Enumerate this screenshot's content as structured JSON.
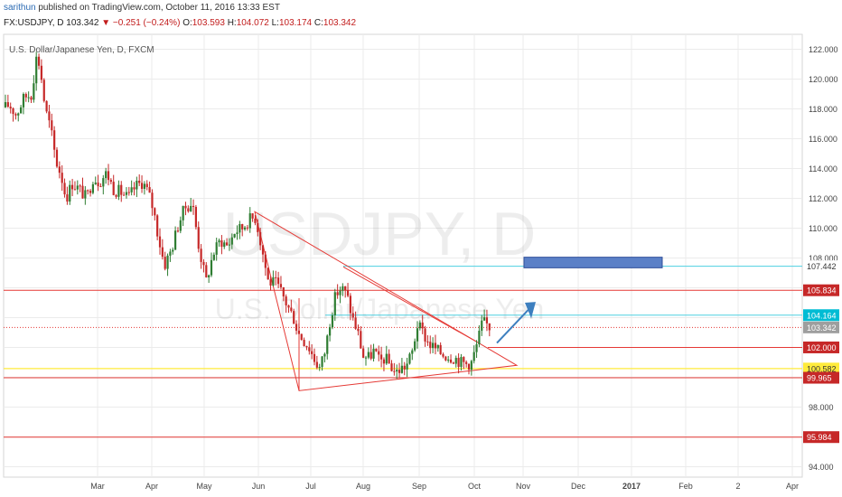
{
  "header": {
    "author": "sarithun",
    "published": "published on TradingView.com, October 11, 2016 13:33 EST",
    "symbol": "FX:USDJPY, D",
    "last": "103.342",
    "change": "−0.251 (−0.24%)",
    "o_label": "O:",
    "o": "103.593",
    "h_label": "H:",
    "h": "104.072",
    "l_label": "L:",
    "l": "103.174",
    "c_label": "C:",
    "c": "103.342"
  },
  "chart_data": {
    "type": "candlestick",
    "title": "U.S. Dollar/Japanese Yen, D, FXCM",
    "watermark_symbol": "USDJPY, D",
    "watermark_name": "U.S. Dollar/Japanese Yen",
    "x_ticks": [
      "Mar",
      "Apr",
      "May",
      "Jun",
      "Jul",
      "Aug",
      "Sep",
      "Oct",
      "Nov",
      "Dec",
      "2017",
      "Feb",
      "2",
      "Apr"
    ],
    "y_ticks": [
      "122.000",
      "120.000",
      "118.000",
      "116.000",
      "114.000",
      "112.000",
      "110.000",
      "108.000",
      "106.000",
      "104.000",
      "102.000",
      "100.000",
      "98.000",
      "96.000",
      "94.000"
    ],
    "ylim": [
      93.3,
      123.0
    ],
    "price_path": [
      [
        0,
        117.8
      ],
      [
        10,
        118.3
      ],
      [
        18,
        117.6
      ],
      [
        27,
        118.8
      ],
      [
        35,
        119.0
      ],
      [
        40,
        121.4
      ],
      [
        44,
        121.0
      ],
      [
        50,
        118.0
      ],
      [
        56,
        116.7
      ],
      [
        62,
        114.5
      ],
      [
        68,
        113.5
      ],
      [
        73,
        112.0
      ],
      [
        80,
        113.0
      ],
      [
        88,
        112.6
      ],
      [
        96,
        112.0
      ],
      [
        103,
        113.4
      ],
      [
        110,
        113.1
      ],
      [
        118,
        113.7
      ],
      [
        126,
        112.6
      ],
      [
        134,
        112.4
      ],
      [
        142,
        112.0
      ],
      [
        150,
        112.8
      ],
      [
        158,
        113.1
      ],
      [
        164,
        112.4
      ],
      [
        170,
        111.2
      ],
      [
        175,
        109.5
      ],
      [
        182,
        107.5
      ],
      [
        190,
        108.6
      ],
      [
        198,
        110.4
      ],
      [
        205,
        111.4
      ],
      [
        213,
        111.7
      ],
      [
        220,
        108.8
      ],
      [
        228,
        106.4
      ],
      [
        236,
        108.3
      ],
      [
        244,
        109.2
      ],
      [
        252,
        108.8
      ],
      [
        260,
        109.8
      ],
      [
        268,
        110.0
      ],
      [
        276,
        110.6
      ],
      [
        283,
        110.7
      ],
      [
        290,
        108.6
      ],
      [
        297,
        106.4
      ],
      [
        305,
        106.3
      ],
      [
        312,
        105.6
      ],
      [
        318,
        104.8
      ],
      [
        325,
        104.0
      ],
      [
        330,
        103.0
      ],
      [
        336,
        102.5
      ],
      [
        342,
        102.0
      ],
      [
        348,
        101.2
      ],
      [
        354,
        100.6
      ],
      [
        360,
        101.8
      ],
      [
        366,
        104.1
      ],
      [
        372,
        105.6
      ],
      [
        378,
        106.0
      ],
      [
        384,
        105.5
      ],
      [
        390,
        104.0
      ],
      [
        396,
        103.0
      ],
      [
        402,
        101.4
      ],
      [
        408,
        101.3
      ],
      [
        414,
        101.8
      ],
      [
        420,
        101.0
      ],
      [
        426,
        101.3
      ],
      [
        432,
        100.8
      ],
      [
        438,
        100.3
      ],
      [
        444,
        100.6
      ],
      [
        450,
        100.8
      ],
      [
        456,
        101.6
      ],
      [
        462,
        103.5
      ],
      [
        468,
        103.0
      ],
      [
        474,
        102.3
      ],
      [
        480,
        102.0
      ],
      [
        486,
        101.7
      ],
      [
        492,
        101.5
      ],
      [
        498,
        101.4
      ],
      [
        504,
        101.3
      ],
      [
        510,
        101.0
      ],
      [
        516,
        100.9
      ],
      [
        522,
        101.0
      ],
      [
        528,
        102.2
      ],
      [
        534,
        103.7
      ],
      [
        540,
        103.5
      ],
      [
        544,
        103.3
      ]
    ],
    "horizontal_levels": [
      {
        "value": 107.442,
        "label": "107.442",
        "style": "cyan"
      },
      {
        "value": 105.834,
        "label": "105.834",
        "style": "red"
      },
      {
        "value": 104.164,
        "label": "104.164",
        "style": "cyan"
      },
      {
        "value": 103.342,
        "label": "103.342",
        "style": "dotted-red"
      },
      {
        "value": 102.0,
        "label": "102.000",
        "style": "red"
      },
      {
        "value": 100.582,
        "label": "100.582",
        "style": "yellow"
      },
      {
        "value": 99.965,
        "label": "99.965",
        "style": "red"
      },
      {
        "value": 95.984,
        "label": "95.984",
        "style": "red"
      }
    ],
    "colors": {
      "up": "#2e7d32",
      "down": "#c62828",
      "trend": "#e53935",
      "cyan": "#4dd0e1",
      "yellow": "#ffeb3b",
      "box_fill": "#5b80c7",
      "box_edge": "#2f4f99",
      "arrow": "#3d7fbf",
      "grid": "#ebebeb",
      "label_red": "#c62828",
      "label_cyan": "#00bcd4",
      "label_yellow": "#ffeb3b",
      "label_gray": "#9e9e9e"
    }
  }
}
